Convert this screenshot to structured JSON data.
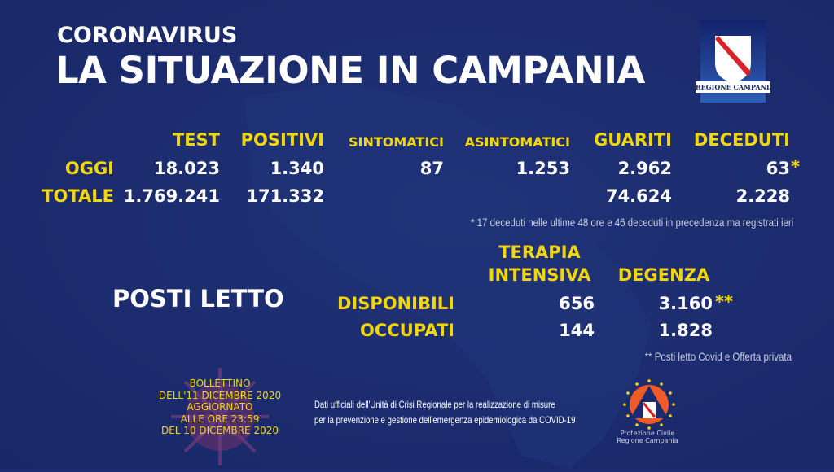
{
  "header": {
    "kicker": "CORONAVIRUS",
    "title": "LA SITUAZIONE IN CAMPANIA"
  },
  "logo": {
    "text": "REGIONE CAMPANIA",
    "colors": {
      "stripe": "#d8232a",
      "shield": "#ffffff"
    }
  },
  "table": {
    "headers": [
      "TEST",
      "POSITIVI",
      "SINTOMATICI",
      "ASINTOMATICI",
      "GUARITI",
      "DECEDUTI"
    ],
    "rows": [
      {
        "label": "OGGI",
        "test": "18.023",
        "positivi": "1.340",
        "sintomatici": "87",
        "asintomatici": "1.253",
        "guariti": "2.962",
        "deceduti": "63",
        "deceduti_mark": "*"
      },
      {
        "label": "TOTALE",
        "test": "1.769.241",
        "positivi": "171.332",
        "guariti": "74.624",
        "deceduti": "2.228"
      }
    ],
    "footnote": "* 17 deceduti nelle ultime 48 ore e 46 deceduti in precedenza ma registrati ieri"
  },
  "beds": {
    "title": "POSTI LETTO",
    "col_ti_1": "TERAPIA",
    "col_ti_2": "INTENSIVA",
    "col_deg": "DEGENZA",
    "rows": [
      {
        "label": "DISPONIBILI",
        "ti": "656",
        "deg": "3.160",
        "mark": "**"
      },
      {
        "label": "OCCUPATI",
        "ti": "144",
        "deg": "1.828"
      }
    ],
    "footnote": "** Posti letto Covid e Offerta privata"
  },
  "bulletin": [
    "BOLLETTINO",
    "DELL'11 DICEMBRE 2020",
    "AGGIORNATO",
    "ALLE ORE 23:59",
    "DEL 10 DICEMBRE 2020"
  ],
  "source": [
    "Dati ufficiali dell'Unità di Crisi Regionale per la realizzazione di misure",
    "per la prevenzione e gestione dell'emergenza epidemiologica da COVID-19"
  ],
  "protezione": {
    "line1": "Protezione Civile",
    "line2": "Regione Campania"
  },
  "colors": {
    "background": "#1b2b6d",
    "accent": "#f2d60c",
    "text": "#ffffff"
  }
}
